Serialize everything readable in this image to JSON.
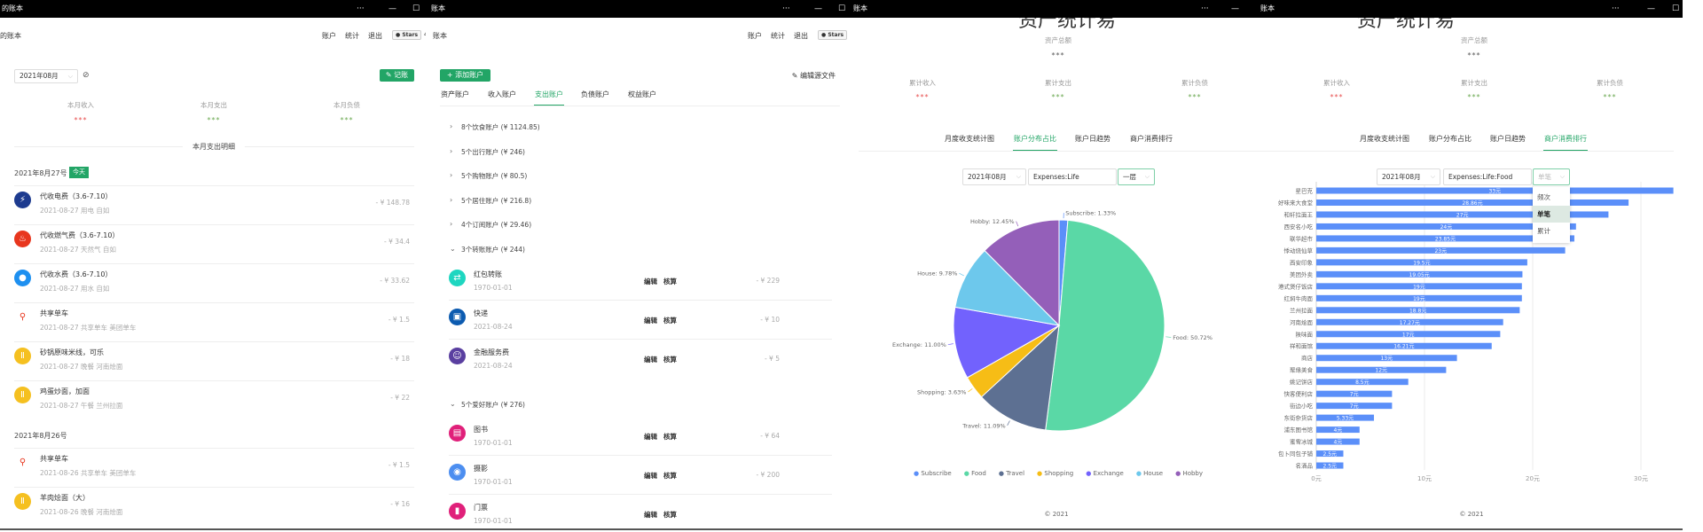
{
  "colors": {
    "accent": "#22a566",
    "income": "#e84e4e",
    "expense": "#6aa84f",
    "bar": "#5b8ff9"
  },
  "window_controls": {
    "more": "···",
    "minimize": "—",
    "maximize": "☐"
  },
  "header": {
    "nav": [
      "账户",
      "统计",
      "退出"
    ],
    "stars": "Stars",
    "stars_count": "4"
  },
  "panel1": {
    "window_title": "的账本",
    "app_title": "的账本",
    "month": "2021年08月",
    "record_button": "记账",
    "stats": [
      {
        "label": "本月收入",
        "value": "***"
      },
      {
        "label": "本月支出",
        "value": "***"
      },
      {
        "label": "本月负债",
        "value": "***"
      }
    ],
    "section_title": "本月支出明细",
    "days": [
      {
        "date": "2021年8月27号",
        "badge": "今天",
        "items": [
          {
            "icon": "lightning-icon",
            "color": "#1d3b8f",
            "title": "代收电费（3.6-7.10）",
            "sub": "2021-08-27 用电 自如",
            "amount": "- ¥ 148.78"
          },
          {
            "icon": "flame-icon",
            "color": "#e8361e",
            "title": "代收燃气费（3.6-7.10）",
            "sub": "2021-08-27 天然气 自如",
            "amount": "- ¥ 34.4"
          },
          {
            "icon": "water-drop-icon",
            "color": "#1e90f0",
            "title": "代收水费（3.6-7.10）",
            "sub": "2021-08-27 用水 自如",
            "amount": "- ¥ 33.62"
          },
          {
            "icon": "bicycle-icon",
            "color": "#e8361e",
            "title": "共享单车",
            "sub": "2021-08-27 共享单车 美团单车",
            "amount": "- ¥ 1.5"
          },
          {
            "icon": "fork-knife-icon",
            "color": "#f5c020",
            "title": "砂锅原味米线，可乐",
            "sub": "2021-08-27 晚餐 河南烩面",
            "amount": "- ¥ 18"
          },
          {
            "icon": "fork-knife-icon",
            "color": "#f5c020",
            "title": "鸡蛋炒面，加面",
            "sub": "2021-08-27 午餐 兰州拉面",
            "amount": "- ¥ 22"
          }
        ]
      },
      {
        "date": "2021年8月26号",
        "items": [
          {
            "icon": "bicycle-icon",
            "color": "#e8361e",
            "title": "共享单车",
            "sub": "2021-08-26 共享单车 美团单车",
            "amount": "- ¥ 1.5"
          },
          {
            "icon": "fork-knife-icon",
            "color": "#f5c020",
            "title": "羊肉烩面（大）",
            "sub": "2021-08-26 晚餐 河南烩面",
            "amount": "- ¥ 16"
          }
        ]
      }
    ]
  },
  "panel2": {
    "window_title": "账本",
    "app_title": "账本",
    "add_account": "添加账户",
    "edit_source": "编辑源文件",
    "tabs": [
      "资产账户",
      "收入账户",
      "支出账户",
      "负债账户",
      "权益账户"
    ],
    "active_tab": 2,
    "groups": [
      {
        "label": "8个饮食账户 (¥ 1124.85)",
        "expanded": false
      },
      {
        "label": "5个出行账户 (¥ 246)",
        "expanded": false
      },
      {
        "label": "5个购物账户 (¥ 80.5)",
        "expanded": false
      },
      {
        "label": "5个居住账户 (¥ 216.8)",
        "expanded": false
      },
      {
        "label": "4个订阅账户 (¥ 29.46)",
        "expanded": false
      },
      {
        "label": "3个转账账户 (¥ 244)",
        "expanded": true,
        "items": [
          {
            "icon": "transfer-icon",
            "color": "#1ed6c0",
            "title": "红包转账",
            "date": "1970-01-01",
            "amount": "- ¥ 229"
          },
          {
            "icon": "package-icon",
            "color": "#0c5bb0",
            "title": "快递",
            "date": "2021-08-24",
            "amount": "- ¥ 10"
          },
          {
            "icon": "finance-icon",
            "color": "#5a3fa0",
            "title": "金融服务费",
            "date": "2021-08-24",
            "amount": "- ¥ 5"
          }
        ]
      },
      {
        "label": "5个爱好账户 (¥ 276)",
        "expanded": true,
        "items": [
          {
            "icon": "book-icon",
            "color": "#e0207a",
            "title": "图书",
            "date": "1970-01-01",
            "amount": "- ¥ 64"
          },
          {
            "icon": "camera-icon",
            "color": "#4c8ef0",
            "title": "摄影",
            "date": "1970-01-01",
            "amount": "- ¥ 200"
          },
          {
            "icon": "ticket-icon",
            "color": "#e0207a",
            "title": "门票",
            "date": "1970-01-01",
            "amount": ""
          }
        ]
      }
    ],
    "edit_label": "编辑",
    "reconcile_label": "核算"
  },
  "stats_common": {
    "page_title": "资产统计易",
    "total_label": "资产总额",
    "total_value": "***",
    "stats": [
      {
        "label": "累计收入",
        "value": "***"
      },
      {
        "label": "累计支出",
        "value": "***"
      },
      {
        "label": "累计负债",
        "value": "***"
      }
    ],
    "tabs": [
      "月度收支统计图",
      "账户分布占比",
      "账户日趋势",
      "商户消费排行"
    ],
    "footer": "© 2021"
  },
  "panel3": {
    "window_title": "账本",
    "active_tab": 1,
    "month": "2021年08月",
    "account": "Expenses:Life",
    "level": "一层"
  },
  "panel4": {
    "window_title": "账本",
    "active_tab": 3,
    "month": "2021年08月",
    "account": "Expenses:Life:Food",
    "mode": "单笔",
    "mode_options": [
      "频次",
      "单笔",
      "累计"
    ],
    "mode_selected": 1
  },
  "chart_data": [
    {
      "type": "pie",
      "legend_position": "bottom",
      "categories": [
        "Subscribe",
        "Food",
        "Travel",
        "Shopping",
        "Exchange",
        "House",
        "Hobby"
      ],
      "values": [
        1.33,
        50.72,
        11.09,
        3.63,
        11.0,
        9.78,
        12.45
      ],
      "labels": [
        "Subscribe: 1.33%",
        "Food: 50.72%",
        "Travel: 11.09%",
        "Shopping: 3.63%",
        "Exchange: 11.00%",
        "House: 9.78%",
        "Hobby: 12.45%"
      ],
      "colors": [
        "#5b8ff9",
        "#5ad8a6",
        "#5d7092",
        "#f6bd16",
        "#7262fd",
        "#6dc8ec",
        "#945fb9"
      ]
    },
    {
      "type": "bar",
      "orientation": "horizontal",
      "xlim": [
        0,
        35
      ],
      "xticks": [
        "0元",
        "10元",
        "20元",
        "30元"
      ],
      "grid": true,
      "categories": [
        "星巴克",
        "好味来大食堂",
        "和轩拉面王",
        "西安名小吃",
        "联华超市",
        "悸动烧仙草",
        "西安印象",
        "美团外卖",
        "港式煲仔饭店",
        "红焖牛肉面",
        "兰州拉面",
        "河南烩面",
        "陕味面",
        "祥和面馆",
        "商店",
        "聚缘美食",
        "姚记饼店",
        "快客便利店",
        "街边小吃",
        "东街杂货店",
        "浦东图书馆",
        "蜜雪冰城",
        "包卜同包子铺",
        "名酒品"
      ],
      "values": [
        33,
        28.86,
        27,
        24,
        23.85,
        23,
        19.5,
        19.05,
        19,
        19,
        18.8,
        17.27,
        17,
        16.21,
        13,
        12,
        8.5,
        7,
        7,
        5.33,
        4,
        4,
        2.5,
        2.5
      ],
      "value_labels": [
        "33元",
        "28.86元",
        "27元",
        "24元",
        "23.85元",
        "23元",
        "19.5元",
        "19.05元",
        "19元",
        "19元",
        "18.8元",
        "17.27元",
        "17元",
        "16.21元",
        "13元",
        "12元",
        "8.5元",
        "7元",
        "7元",
        "5.33元",
        "4元",
        "4元",
        "2.5元",
        "2.5元"
      ]
    }
  ]
}
